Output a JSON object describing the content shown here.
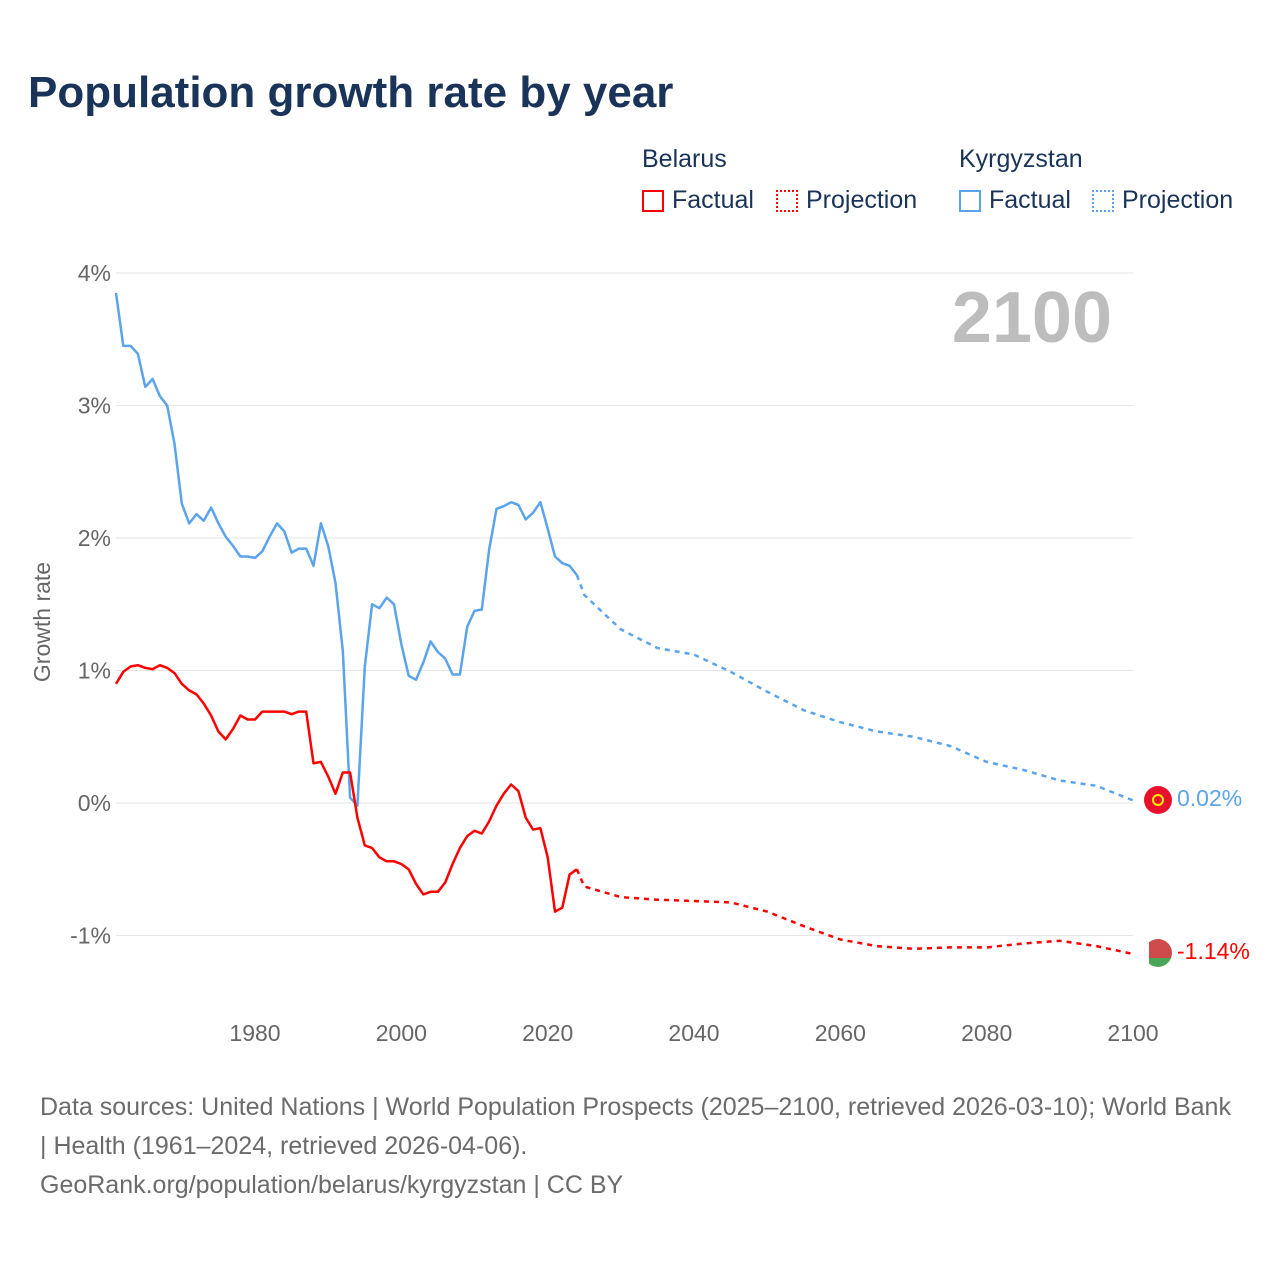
{
  "title": "Population growth rate by year",
  "legend": {
    "belarus": "Belarus",
    "kyrgyzstan": "Kyrgyzstan",
    "factual": "Factual",
    "projection": "Projection"
  },
  "year_label": "2100",
  "end_labels": {
    "kyrgyzstan": "0.02%",
    "belarus": "-1.14%"
  },
  "footer": {
    "sources": "Data sources: United Nations | World Population Prospects (2025–2100, retrieved 2026-03-10); World Bank | Health (1961–2024, retrieved 2026-04-06).",
    "credit": "GeoRank.org/population/belarus/kyrgyzstan | CC BY"
  },
  "colors": {
    "belarus": "#ff0000",
    "kyrgyzstan": "#5ba4ec"
  },
  "chart_data": {
    "type": "line",
    "title": "Population growth rate by year",
    "xlabel": "",
    "ylabel": "Growth rate",
    "xlim": [
      1961,
      2100
    ],
    "ylim": [
      -1,
      4
    ],
    "x_ticks": [
      1980,
      2000,
      2020,
      2040,
      2060,
      2080,
      2100
    ],
    "y_ticks": [
      {
        "v": 4,
        "label": "4%"
      },
      {
        "v": 3,
        "label": "3%"
      },
      {
        "v": 2,
        "label": "2%"
      },
      {
        "v": 1,
        "label": "1%"
      },
      {
        "v": 0,
        "label": "0%"
      },
      {
        "v": -1,
        "label": "-1%"
      }
    ],
    "series": [
      {
        "name": "Kyrgyzstan",
        "kind": "factual",
        "x_start": 1961,
        "values": [
          3.85,
          3.45,
          3.45,
          3.39,
          3.14,
          3.2,
          3.07,
          3.0,
          2.71,
          2.26,
          2.11,
          2.18,
          2.13,
          2.23,
          2.11,
          2.01,
          1.94,
          1.86,
          1.86,
          1.85,
          1.9,
          2.01,
          2.11,
          2.05,
          1.89,
          1.92,
          1.92,
          1.79,
          2.11,
          1.94,
          1.66,
          1.15,
          0.04,
          -0.02,
          1.03,
          1.5,
          1.47,
          1.55,
          1.5,
          1.2,
          0.96,
          0.93,
          1.06,
          1.22,
          1.14,
          1.09,
          0.97,
          0.97,
          1.33,
          1.45,
          1.46,
          1.91,
          2.22,
          2.24,
          2.27,
          2.25,
          2.14,
          2.19,
          2.27,
          2.07,
          1.86,
          1.81,
          1.79,
          1.72
        ]
      },
      {
        "name": "Kyrgyzstan",
        "kind": "projection",
        "x": [
          2024,
          2025,
          2030,
          2035,
          2040,
          2045,
          2050,
          2055,
          2060,
          2065,
          2070,
          2075,
          2080,
          2085,
          2090,
          2095,
          2100
        ],
        "values": [
          1.72,
          1.57,
          1.31,
          1.17,
          1.12,
          0.99,
          0.84,
          0.7,
          0.61,
          0.54,
          0.5,
          0.43,
          0.31,
          0.25,
          0.17,
          0.13,
          0.02
        ]
      },
      {
        "name": "Belarus",
        "kind": "factual",
        "x_start": 1961,
        "values": [
          0.9,
          0.99,
          1.03,
          1.04,
          1.02,
          1.01,
          1.04,
          1.02,
          0.98,
          0.9,
          0.85,
          0.82,
          0.75,
          0.66,
          0.54,
          0.48,
          0.56,
          0.66,
          0.63,
          0.63,
          0.69,
          0.69,
          0.69,
          0.69,
          0.67,
          0.69,
          0.69,
          0.3,
          0.31,
          0.2,
          0.07,
          0.23,
          0.23,
          -0.11,
          -0.32,
          -0.34,
          -0.41,
          -0.44,
          -0.44,
          -0.46,
          -0.5,
          -0.61,
          -0.69,
          -0.67,
          -0.67,
          -0.6,
          -0.46,
          -0.34,
          -0.25,
          -0.21,
          -0.23,
          -0.14,
          -0.02,
          0.07,
          0.14,
          0.09,
          -0.11,
          -0.2,
          -0.19,
          -0.41,
          -0.82,
          -0.79,
          -0.54,
          -0.5
        ]
      },
      {
        "name": "Belarus",
        "kind": "projection",
        "x": [
          2024,
          2025,
          2030,
          2035,
          2040,
          2045,
          2050,
          2055,
          2060,
          2065,
          2070,
          2075,
          2080,
          2085,
          2090,
          2095,
          2100
        ],
        "values": [
          -0.5,
          -0.63,
          -0.71,
          -0.73,
          -0.74,
          -0.75,
          -0.82,
          -0.93,
          -1.03,
          -1.08,
          -1.1,
          -1.09,
          -1.09,
          -1.06,
          -1.04,
          -1.08,
          -1.14
        ]
      }
    ]
  }
}
